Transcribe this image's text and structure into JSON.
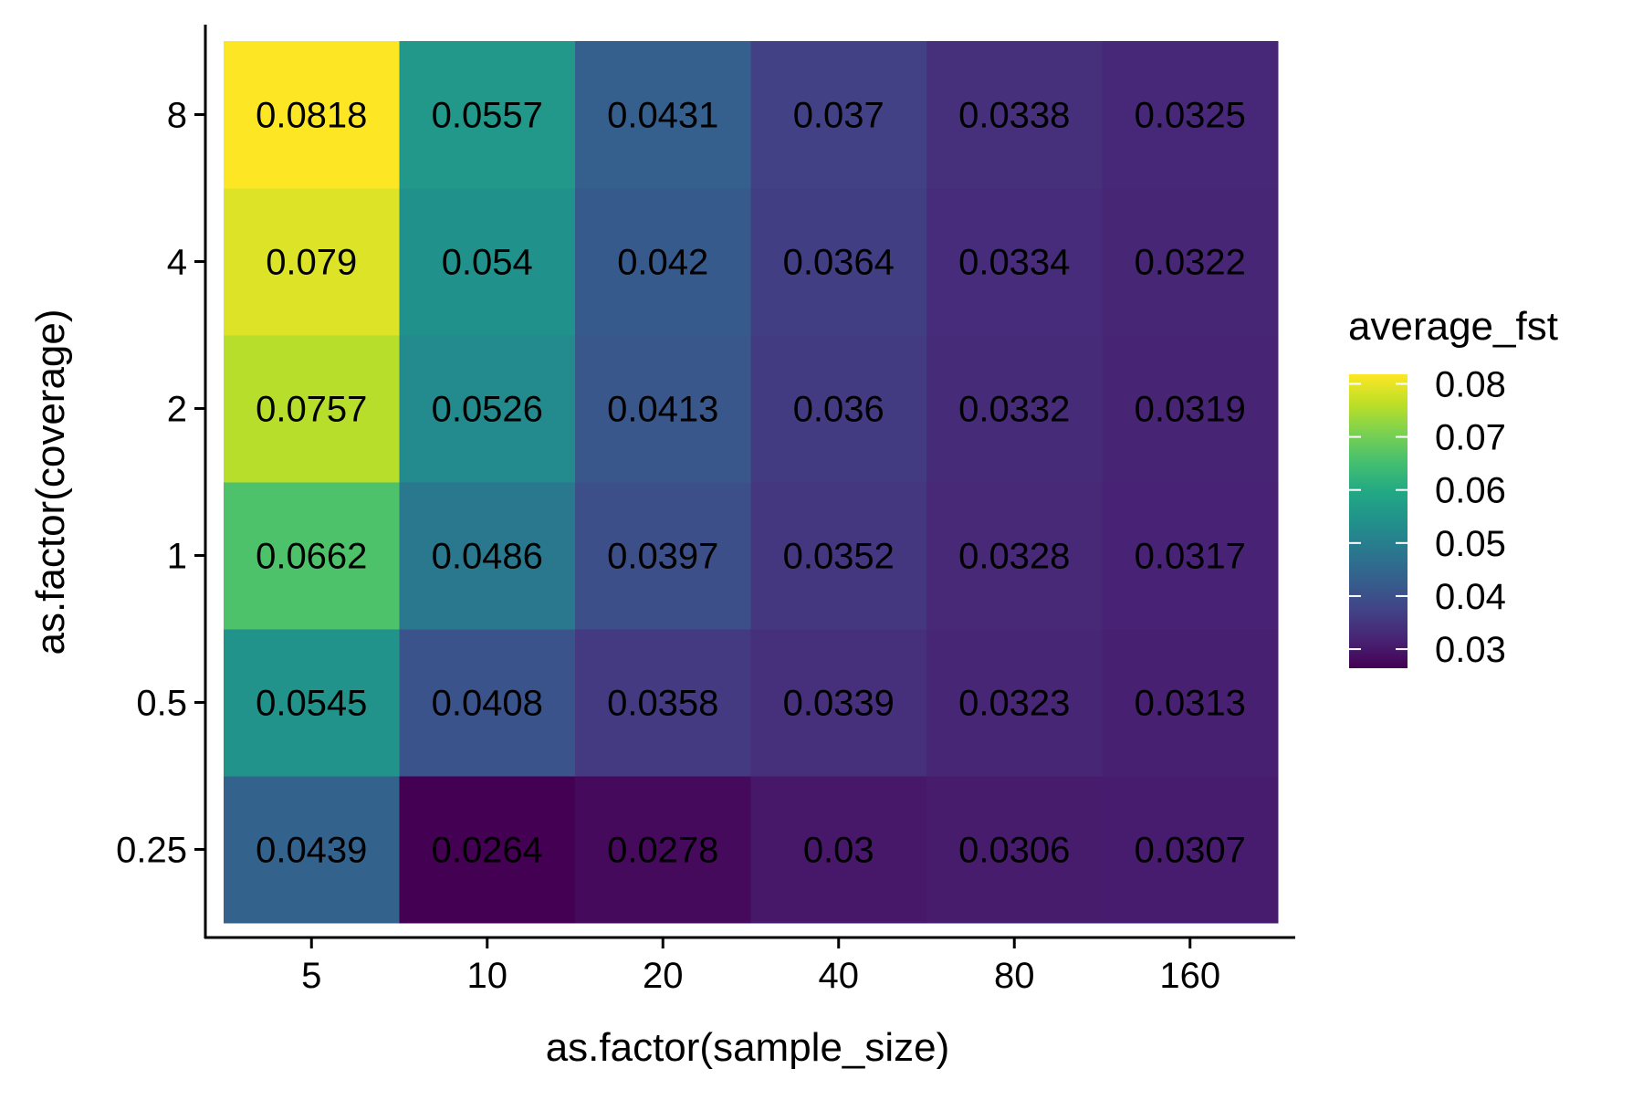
{
  "chart_data": {
    "type": "heatmap",
    "title": "",
    "xlabel": "as.factor(sample_size)",
    "ylabel": "as.factor(coverage)",
    "x_categories": [
      "5",
      "10",
      "20",
      "40",
      "80",
      "160"
    ],
    "y_categories": [
      "0.25",
      "0.5",
      "1",
      "2",
      "4",
      "8"
    ],
    "values": [
      [
        "0.0439",
        "0.0264",
        "0.0278",
        "0.03",
        "0.0306",
        "0.0307"
      ],
      [
        "0.0545",
        "0.0408",
        "0.0358",
        "0.0339",
        "0.0323",
        "0.0313"
      ],
      [
        "0.0662",
        "0.0486",
        "0.0397",
        "0.0352",
        "0.0328",
        "0.0317"
      ],
      [
        "0.0757",
        "0.0526",
        "0.0413",
        "0.036",
        "0.0332",
        "0.0319"
      ],
      [
        "0.079",
        "0.054",
        "0.042",
        "0.0364",
        "0.0334",
        "0.0322"
      ],
      [
        "0.0818",
        "0.0557",
        "0.0431",
        "0.037",
        "0.0338",
        "0.0325"
      ]
    ],
    "legend": {
      "title": "average_fst",
      "position": "right",
      "breaks": [
        "0.08",
        "0.07",
        "0.06",
        "0.05",
        "0.04",
        "0.03"
      ],
      "colormap": "viridis",
      "range": [
        0.0264,
        0.0818
      ]
    },
    "grid": false
  }
}
